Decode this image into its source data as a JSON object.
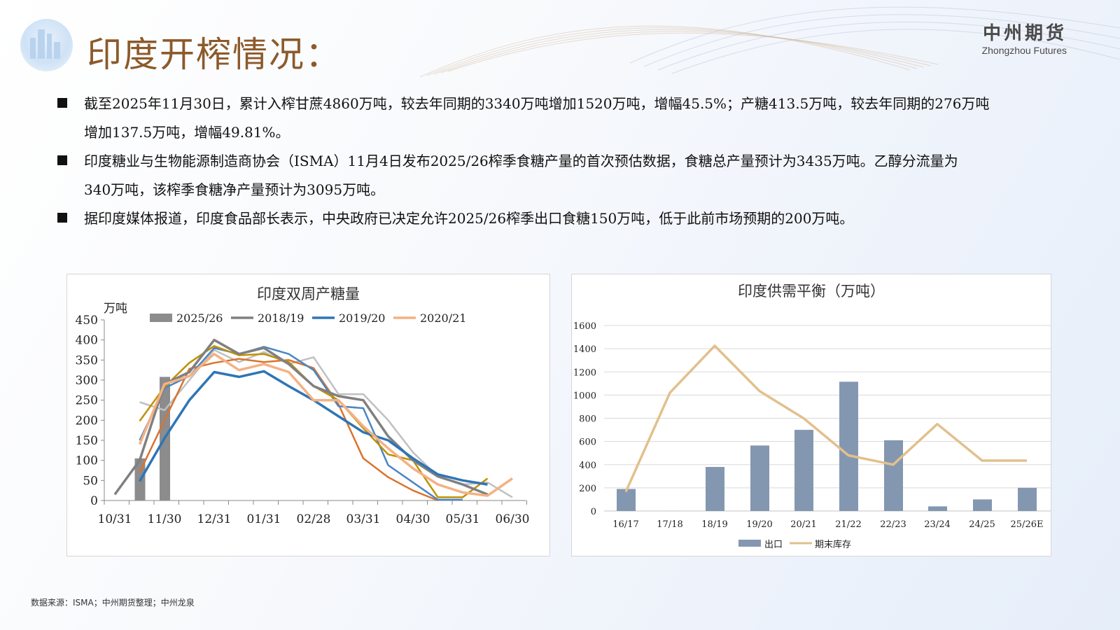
{
  "header": {
    "title": "印度开榨情况：",
    "brand_cn": "中州期货",
    "brand_en": "Zhongzhou Futures"
  },
  "bullets": [
    {
      "line1": "截至2025年11月30日，累计入榨甘蔗4860万吨，较去年同期的3340万吨增加1520万吨，增幅45.5%；产糖413.5万吨，较去年同期的276万吨",
      "line2": "增加137.5万吨，增幅49.81%。"
    },
    {
      "line1": "印度糖业与生物能源制造商协会（ISMA）11月4日发布2025/26榨季食糖产量的首次预估数据，食糖总产量预计为3435万吨。乙醇分流量为",
      "line2": "340万吨，该榨季食糖净产量预计为3095万吨。"
    },
    {
      "line1": "据印度媒体报道，印度食品部长表示，中央政府已决定允许2025/26榨季出口食糖150万吨，低于此前市场预期的200万吨。",
      "line2": ""
    }
  ],
  "footer": {
    "source": "数据来源：ISMA；中州期货整理；中州龙泉"
  },
  "chart_data": [
    {
      "type": "line",
      "title": "印度双周产糖量",
      "ylabel": "万吨",
      "xlabel": "",
      "ylim": [
        0,
        450
      ],
      "yticks": [
        0,
        50,
        100,
        150,
        200,
        250,
        300,
        350,
        400,
        450
      ],
      "xtick_labels": [
        "10/31",
        "11/30",
        "12/31",
        "01/31",
        "02/28",
        "03/31",
        "04/30",
        "05/31",
        "06/30"
      ],
      "legend": [
        "2025/26",
        "2018/19",
        "2019/20",
        "2020/21"
      ],
      "x_half_month_index_note": "x index 0 = 10/31, each step = half month",
      "series": [
        {
          "name": "2025/26",
          "kind": "bar",
          "color": "#8c8c8c",
          "x": [
            1,
            2
          ],
          "values": [
            105,
            308
          ]
        },
        {
          "name": "2018/19",
          "kind": "line",
          "color": "#808080",
          "width": 3.5,
          "x": [
            0,
            1,
            2,
            3,
            4,
            5,
            6,
            7,
            8,
            9,
            10,
            11,
            12,
            13,
            14,
            15
          ],
          "values": [
            15,
            100,
            290,
            320,
            400,
            365,
            380,
            340,
            285,
            260,
            250,
            160,
            100,
            60,
            40,
            15
          ]
        },
        {
          "name": "2019/20",
          "kind": "line",
          "color": "#2e75b6",
          "width": 3.5,
          "x": [
            1,
            2,
            3,
            4,
            5,
            6,
            7,
            8,
            9,
            10,
            11,
            12,
            13,
            14,
            15
          ],
          "values": [
            48,
            155,
            250,
            320,
            308,
            322,
            285,
            250,
            210,
            170,
            150,
            105,
            65,
            50,
            40
          ]
        },
        {
          "name": "2020/21",
          "kind": "line",
          "color": "#f4b183",
          "width": 3.5,
          "x": [
            1,
            2,
            3,
            4,
            5,
            6,
            7,
            8,
            9,
            10,
            11,
            12,
            13,
            14,
            15,
            16
          ],
          "values": [
            140,
            290,
            310,
            365,
            325,
            340,
            320,
            250,
            250,
            185,
            130,
            80,
            40,
            20,
            12,
            55
          ]
        },
        {
          "name": "other-1",
          "kind": "line",
          "color": "#c0c0c0",
          "width": 2.5,
          "x": [
            1,
            2,
            3,
            4,
            5,
            6,
            7,
            8,
            9,
            10,
            11,
            12,
            13,
            14,
            15,
            16
          ],
          "values": [
            245,
            225,
            300,
            375,
            345,
            370,
            340,
            357,
            265,
            265,
            200,
            120,
            60,
            40,
            45,
            8
          ]
        },
        {
          "name": "other-2",
          "kind": "line",
          "color": "#d9742f",
          "width": 2.5,
          "x": [
            1,
            2,
            3,
            4,
            5,
            6,
            7,
            8,
            9,
            10,
            11,
            12,
            13
          ],
          "values": [
            70,
            200,
            328,
            343,
            353,
            345,
            350,
            330,
            240,
            105,
            58,
            25,
            0
          ]
        },
        {
          "name": "other-3",
          "kind": "line",
          "color": "#4a86c5",
          "width": 2.5,
          "x": [
            1,
            2,
            3,
            4,
            5,
            6,
            7,
            8,
            9,
            10,
            11,
            12,
            13,
            14
          ],
          "values": [
            150,
            280,
            310,
            380,
            365,
            383,
            365,
            325,
            235,
            230,
            88,
            45,
            2,
            2
          ]
        },
        {
          "name": "other-4",
          "kind": "line",
          "color": "#bf9000",
          "width": 2.5,
          "x": [
            1,
            2,
            3,
            4,
            5,
            6,
            7,
            8,
            9,
            10,
            11,
            12,
            13,
            14,
            15
          ],
          "values": [
            198,
            283,
            343,
            385,
            362,
            365,
            345,
            285,
            250,
            180,
            115,
            100,
            8,
            8,
            55
          ]
        }
      ]
    },
    {
      "type": "bar+line",
      "title": "印度供需平衡（万吨）",
      "ylim": [
        0,
        1600
      ],
      "yticks": [
        0,
        200,
        400,
        600,
        800,
        1000,
        1200,
        1400,
        1600
      ],
      "categories": [
        "16/17",
        "17/18",
        "18/19",
        "19/20",
        "20/21",
        "21/22",
        "22/23",
        "23/24",
        "24/25",
        "25/26E"
      ],
      "legend": [
        "出口",
        "期末库存"
      ],
      "series": [
        {
          "name": "出口",
          "kind": "bar",
          "color": "#8497b0",
          "values": [
            190,
            5,
            380,
            565,
            700,
            1115,
            610,
            40,
            100,
            200
          ]
        },
        {
          "name": "期末库存",
          "kind": "line",
          "color": "#e2c08d",
          "values": [
            165,
            1020,
            1425,
            1035,
            800,
            480,
            400,
            750,
            435,
            435
          ]
        }
      ]
    }
  ]
}
